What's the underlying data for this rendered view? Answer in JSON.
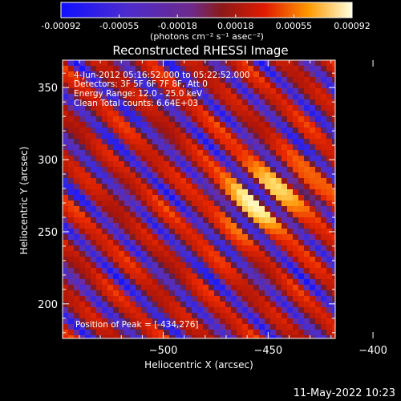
{
  "colorbar": {
    "ticks": [
      "-0.00092",
      "-0.00055",
      "-0.00018",
      "0.00018",
      "0.00055",
      "0.00092"
    ],
    "unit_label": "(photons cm⁻² s⁻¹ asec⁻²)",
    "range": [
      -0.00092,
      0.00092
    ]
  },
  "chart_data": {
    "type": "heatmap",
    "title": "Reconstructed RHESSI Image",
    "xlabel": "Heliocentric X (arcsec)",
    "ylabel": "Heliocentric Y (arcsec)",
    "xlim": [
      -548,
      -418
    ],
    "ylim": [
      176,
      369
    ],
    "x_ticks": [
      -500,
      -450,
      -400
    ],
    "y_ticks": [
      200,
      250,
      300,
      350
    ],
    "x_tick_labels": [
      "−500",
      "−450",
      "−400"
    ],
    "y_tick_labels": [
      "200",
      "250",
      "300",
      "350"
    ],
    "peak": [
      -434,
      276
    ],
    "annotations": [
      "4-Jun-2012 05:16:52.000 to 05:22:52.000",
      "Detectors: 3F 5F 6F 7F 8F, Att 0",
      "Energy Range: 12.0 - 25.0 keV",
      "Clean    Total counts: 6.64E+03",
      "Position of Peak = [-434,276]"
    ],
    "colorscale": "RHESSI red-temperature / purple"
  },
  "footer": {
    "timestamp": "11-May-2022 10:23"
  }
}
